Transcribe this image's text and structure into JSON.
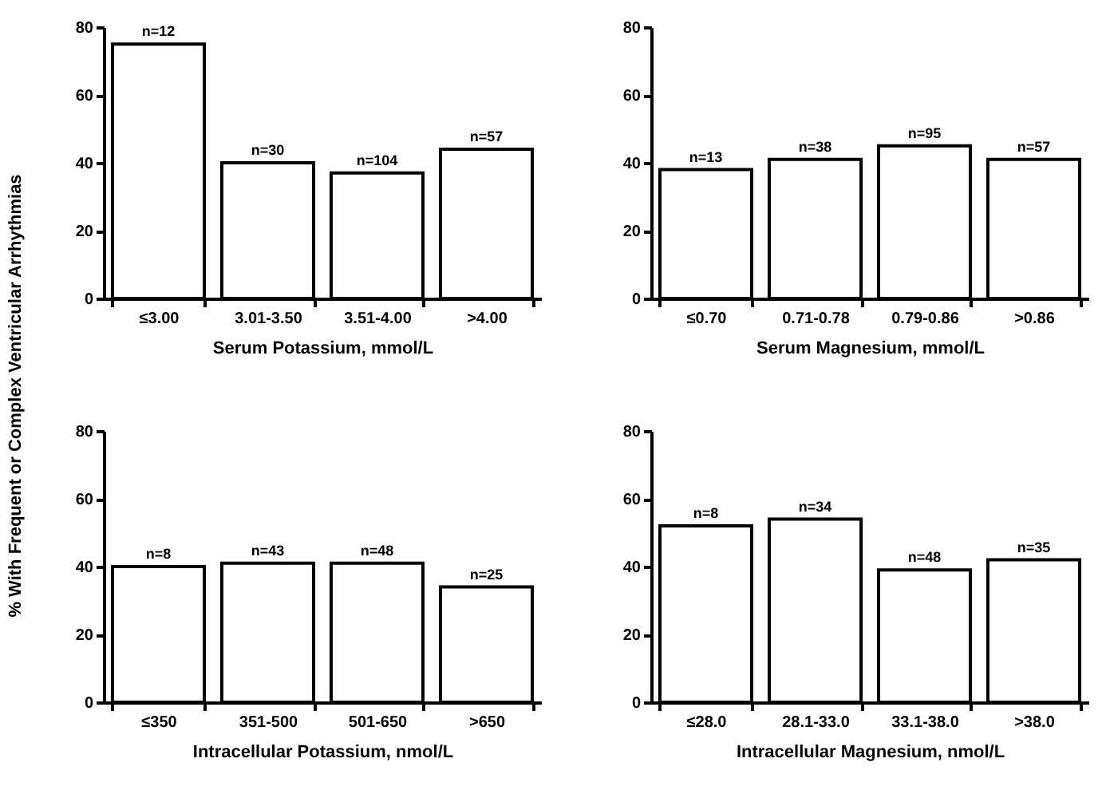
{
  "chart_data": [
    {
      "type": "bar",
      "ylabel": "% With Frequent or Complex Ventricular Arrhythmias",
      "xlabel": "Serum Potassium, mmol/L",
      "categories": [
        "≤3.00",
        "3.01-3.50",
        "3.51-4.00",
        ">4.00"
      ],
      "values": [
        75,
        40,
        37,
        44
      ],
      "color": "#ffffff",
      "ylim": [
        0,
        80
      ],
      "yticks": [
        0,
        20,
        40,
        60,
        80
      ],
      "annotations": [
        {
          "text": "n=12",
          "x": "≤3.00",
          "y": 75
        },
        {
          "text": "n=30",
          "x": "3.01-3.50",
          "y": 40
        },
        {
          "text": "n=104",
          "x": "3.51-4.00",
          "y": 37
        },
        {
          "text": "n=57",
          "x": ">4.00",
          "y": 44
        }
      ]
    },
    {
      "type": "bar",
      "xlabel": "Serum Magnesium, mmol/L",
      "categories": [
        "≤0.70",
        "0.71-0.78",
        "0.79-0.86",
        ">0.86"
      ],
      "values": [
        38,
        41,
        45,
        41
      ],
      "color": "#ffffff",
      "ylim": [
        0,
        80
      ],
      "yticks": [
        0,
        20,
        40,
        60,
        80
      ],
      "annotations": [
        {
          "text": "n=13",
          "x": "≤0.70",
          "y": 38
        },
        {
          "text": "n=38",
          "x": "0.71-0.78",
          "y": 41
        },
        {
          "text": "n=95",
          "x": "0.79-0.86",
          "y": 45
        },
        {
          "text": "n=57",
          "x": ">0.86",
          "y": 41
        }
      ]
    },
    {
      "type": "bar",
      "xlabel": "Intracellular Potassium, nmol/L",
      "categories": [
        "≤350",
        "351-500",
        "501-650",
        ">650"
      ],
      "values": [
        40,
        41,
        41,
        34
      ],
      "color": "#ffffff",
      "ylim": [
        0,
        80
      ],
      "yticks": [
        0,
        20,
        40,
        60,
        80
      ],
      "annotations": [
        {
          "text": "n=8",
          "x": "≤350",
          "y": 40
        },
        {
          "text": "n=43",
          "x": "351-500",
          "y": 41
        },
        {
          "text": "n=48",
          "x": "501-650",
          "y": 41
        },
        {
          "text": "n=25",
          "x": ">650",
          "y": 34
        }
      ]
    },
    {
      "type": "bar",
      "xlabel": "Intracellular Magnesium, nmol/L",
      "categories": [
        "≤28.0",
        "28.1-33.0",
        "33.1-38.0",
        ">38.0"
      ],
      "values": [
        52,
        54,
        39,
        42
      ],
      "color": "#ffffff",
      "ylim": [
        0,
        80
      ],
      "yticks": [
        0,
        20,
        40,
        60,
        80
      ],
      "annotations": [
        {
          "text": "n=8",
          "x": "≤28.0",
          "y": 52
        },
        {
          "text": "n=34",
          "x": "28.1-33.0",
          "y": 54
        },
        {
          "text": "n=48",
          "x": "33.1-38.0",
          "y": 39
        },
        {
          "text": "n=35",
          "x": ">38.0",
          "y": 42
        }
      ]
    }
  ]
}
